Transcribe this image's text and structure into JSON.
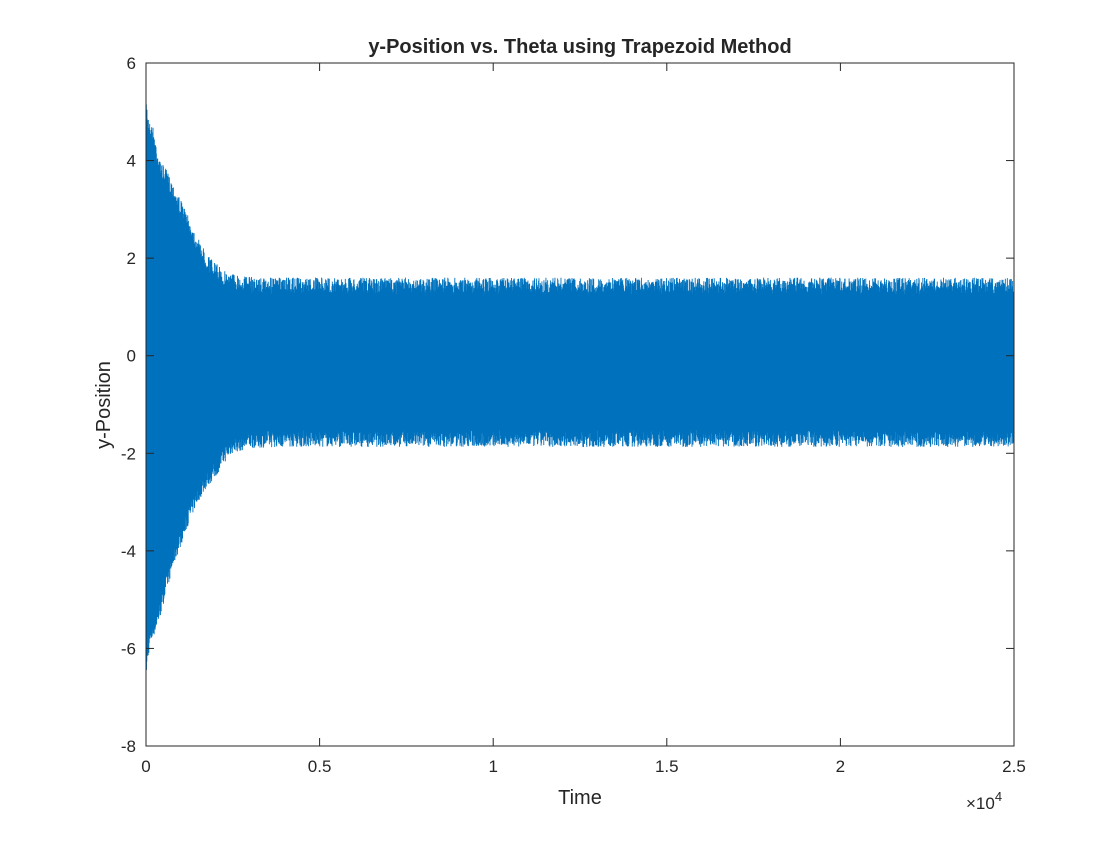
{
  "chart_data": {
    "type": "line",
    "title": "y-Position vs. Theta using Trapezoid Method",
    "xlabel": "Time",
    "ylabel": "y-Position",
    "xlim": [
      0,
      25000
    ],
    "ylim": [
      -8,
      6
    ],
    "x_exponent_label": "×10",
    "x_exponent_power": "4",
    "x_tick_values": [
      0,
      5000,
      10000,
      15000,
      20000,
      25000
    ],
    "x_tick_labels": [
      "0",
      "0.5",
      "1",
      "1.5",
      "2",
      "2.5"
    ],
    "y_tick_values": [
      -8,
      -6,
      -4,
      -2,
      0,
      2,
      4,
      6
    ],
    "y_tick_labels": [
      "-8",
      "-6",
      "-4",
      "-2",
      "0",
      "2",
      "4",
      "6"
    ],
    "grid": false,
    "box": true,
    "series_color": "#0072BD",
    "series": [
      {
        "description_note": "",
        "envelope": {
          "x": [
            0,
            100,
            200,
            400,
            600,
            800,
            1000,
            1250,
            1500,
            1750,
            2000,
            2250,
            2500,
            2750,
            3000,
            3500,
            4000,
            25000
          ],
          "upper": [
            5.3,
            4.8,
            4.7,
            4.0,
            3.8,
            3.5,
            3.2,
            2.8,
            2.4,
            2.1,
            1.9,
            1.75,
            1.7,
            1.65,
            1.62,
            1.6,
            1.6,
            1.6
          ],
          "lower": [
            -6.6,
            -6.0,
            -5.8,
            -5.4,
            -4.8,
            -4.3,
            -3.9,
            -3.4,
            -3.0,
            -2.7,
            -2.5,
            -2.2,
            -2.0,
            -1.95,
            -1.9,
            -1.88,
            -1.87,
            -1.87
          ]
        }
      }
    ]
  }
}
